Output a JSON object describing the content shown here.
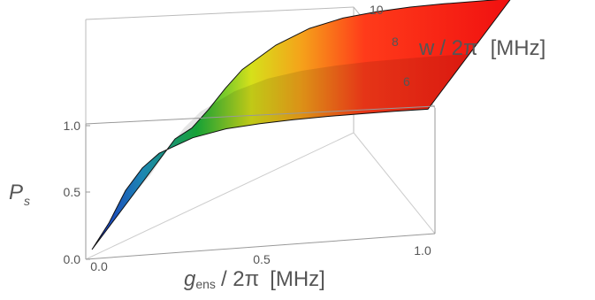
{
  "chart_data": {
    "type": "surface3d",
    "title": "",
    "x_axis": {
      "label": {
        "main": "g",
        "subscript": "ens",
        "rest": "/ 2π",
        "unit": "[MHz]"
      },
      "range": [
        0.0,
        1.0
      ],
      "ticks": [
        "0.0",
        "0.5",
        "1.0"
      ]
    },
    "y_axis": {
      "label": {
        "main": "w",
        "rest": "/ 2π",
        "unit": "[MHz]"
      },
      "range": [
        5,
        10
      ],
      "ticks": [
        "6",
        "8",
        "10"
      ]
    },
    "z_axis": {
      "label": {
        "main": "P",
        "subscript": "s"
      },
      "range": [
        0.0,
        1.0
      ],
      "ticks": [
        "0.0",
        "0.5",
        "1.0"
      ]
    },
    "front_edge": {
      "description_w": 5,
      "g": [
        0.0,
        0.05,
        0.1,
        0.15,
        0.2,
        0.3,
        0.4,
        0.5,
        0.6,
        0.7,
        0.8,
        0.9,
        1.0
      ],
      "P": [
        0.0,
        0.2,
        0.45,
        0.62,
        0.73,
        0.84,
        0.9,
        0.93,
        0.95,
        0.965,
        0.975,
        0.985,
        0.99
      ]
    },
    "back_edge": {
      "description_w": 10,
      "g": [
        0.0,
        0.05,
        0.1,
        0.15,
        0.2,
        0.3,
        0.4,
        0.5,
        0.6,
        0.7,
        0.8,
        0.9,
        1.0
      ],
      "P": [
        0.0,
        0.08,
        0.22,
        0.38,
        0.52,
        0.7,
        0.82,
        0.89,
        0.93,
        0.955,
        0.97,
        0.98,
        0.99
      ]
    },
    "colormap": [
      "#1f2fd6",
      "#2196c8",
      "#19b43c",
      "#d6e01a",
      "#f5a21a",
      "#ff3b1a",
      "#f01010"
    ],
    "grid": false,
    "box": true
  }
}
